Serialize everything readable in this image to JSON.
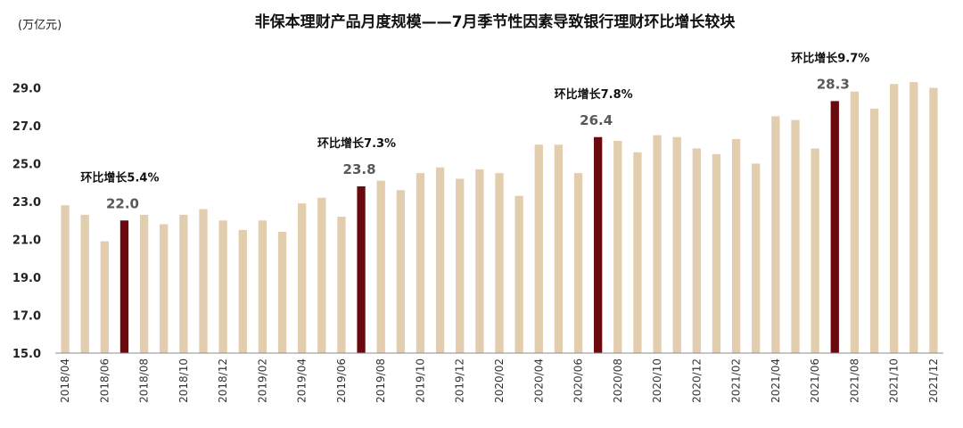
{
  "chart_data": {
    "type": "bar",
    "title": "非保本理财产品月度规模——7月季节性因素导致银行理财环比增长较块",
    "unit": "(万亿元)",
    "xlabel": "",
    "ylabel": "",
    "ylim": [
      15.0,
      31.0
    ],
    "yticks": [
      "15.0",
      "17.0",
      "19.0",
      "21.0",
      "23.0",
      "25.0",
      "27.0",
      "29.0"
    ],
    "grid": false,
    "legend": "none",
    "categories": [
      "2018/04",
      "2018/05",
      "2018/06",
      "2018/07",
      "2018/08",
      "2018/09",
      "2018/10",
      "2018/11",
      "2018/12",
      "2019/01",
      "2019/02",
      "2019/03",
      "2019/04",
      "2019/05",
      "2019/06",
      "2019/07",
      "2019/08",
      "2019/09",
      "2019/10",
      "2019/11",
      "2019/12",
      "2020/01",
      "2020/02",
      "2020/03",
      "2020/04",
      "2020/05",
      "2020/06",
      "2020/07",
      "2020/08",
      "2020/09",
      "2020/10",
      "2020/11",
      "2020/12",
      "2021/01",
      "2021/02",
      "2021/03",
      "2021/04",
      "2021/05",
      "2021/06",
      "2021/07",
      "2021/08",
      "2021/09",
      "2021/10",
      "2021/11",
      "2021/12"
    ],
    "values": [
      22.8,
      22.3,
      20.9,
      22.0,
      22.3,
      21.8,
      22.3,
      22.6,
      22.0,
      21.5,
      22.0,
      21.4,
      22.9,
      23.2,
      22.2,
      23.8,
      24.1,
      23.6,
      24.5,
      24.8,
      24.2,
      24.7,
      24.5,
      23.3,
      26.0,
      26.0,
      24.5,
      26.4,
      26.2,
      25.6,
      26.5,
      26.4,
      25.8,
      25.5,
      26.3,
      25.0,
      27.5,
      27.3,
      25.8,
      28.3,
      28.8,
      27.9,
      29.2,
      29.3,
      29.0
    ],
    "xtick_labels": [
      "2018/04",
      "2018/06",
      "2018/08",
      "2018/10",
      "2018/12",
      "2019/02",
      "2019/04",
      "2019/06",
      "2019/08",
      "2019/10",
      "2019/12",
      "2020/02",
      "2020/04",
      "2020/06",
      "2020/08",
      "2020/10",
      "2020/12",
      "2021/02",
      "2021/04",
      "2021/06",
      "2021/08",
      "2021/10",
      "2021/12"
    ],
    "colors": {
      "normal": "#E2CDAE",
      "highlight": "#6B0A0E"
    },
    "highlights": [
      {
        "category": "2018/07",
        "value_label": "22.0",
        "annotation": "环比增长5.4%"
      },
      {
        "category": "2019/07",
        "value_label": "23.8",
        "annotation": "环比增长7.3%"
      },
      {
        "category": "2020/07",
        "value_label": "26.4",
        "annotation": "环比增长7.8%"
      },
      {
        "category": "2021/07",
        "value_label": "28.3",
        "annotation": "环比增长9.7%"
      }
    ]
  }
}
